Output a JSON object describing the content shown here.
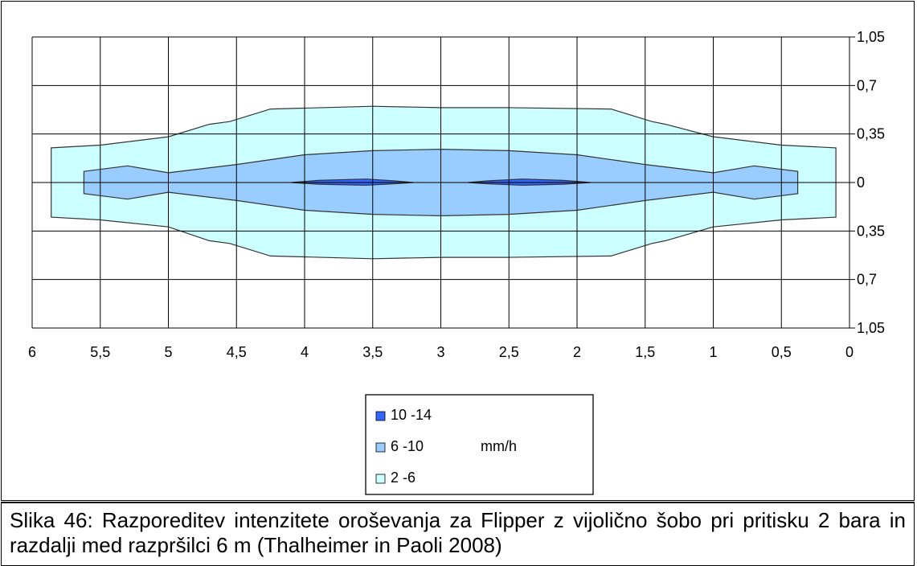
{
  "caption": "Slika 46: Razporeditev intenzitete oroševanja za Flipper z vijolično šobo pri pritisku 2 bara in razdalji med razpršilci 6 m (Thalheimer in Paoli 2008)",
  "chart_data": {
    "type": "contour",
    "x_ticks": [
      "6",
      "5,5",
      "5",
      "4,5",
      "4",
      "3,5",
      "3",
      "2,5",
      "2",
      "1,5",
      "1",
      "0,5",
      "0"
    ],
    "x_range": [
      6,
      0
    ],
    "y_ticks": [
      "1,05",
      "0,7",
      "0,35",
      "0",
      "0,35",
      "0,7",
      "1,05"
    ],
    "y_range": [
      -1.05,
      1.05
    ],
    "grid": true,
    "unit": "mm/h",
    "legend_position": "bottom-center",
    "series": [
      {
        "name": "2 -6",
        "color": "#ccffff",
        "upper": [
          [
            5.86,
            0.25
          ],
          [
            5.5,
            0.27
          ],
          [
            5.0,
            0.33
          ],
          [
            4.7,
            0.42
          ],
          [
            4.55,
            0.44
          ],
          [
            4.25,
            0.53
          ],
          [
            3.5,
            0.55
          ],
          [
            3.0,
            0.54
          ],
          [
            2.5,
            0.54
          ],
          [
            1.75,
            0.53
          ],
          [
            1.45,
            0.44
          ],
          [
            1.35,
            0.42
          ],
          [
            1.0,
            0.33
          ],
          [
            0.5,
            0.27
          ],
          [
            0.1,
            0.25
          ]
        ],
        "lower": [
          [
            5.86,
            -0.25
          ],
          [
            5.5,
            -0.27
          ],
          [
            5.0,
            -0.32
          ],
          [
            4.7,
            -0.42
          ],
          [
            4.55,
            -0.44
          ],
          [
            4.25,
            -0.53
          ],
          [
            3.5,
            -0.55
          ],
          [
            3.0,
            -0.54
          ],
          [
            2.5,
            -0.54
          ],
          [
            1.75,
            -0.53
          ],
          [
            1.45,
            -0.44
          ],
          [
            1.35,
            -0.42
          ],
          [
            1.0,
            -0.32
          ],
          [
            0.5,
            -0.27
          ],
          [
            0.1,
            -0.25
          ]
        ]
      },
      {
        "name": "6 -10",
        "color": "#99ccff",
        "upper": [
          [
            5.62,
            0.08
          ],
          [
            5.3,
            0.12
          ],
          [
            5.0,
            0.07
          ],
          [
            4.5,
            0.13
          ],
          [
            4.0,
            0.2
          ],
          [
            3.5,
            0.23
          ],
          [
            3.0,
            0.24
          ],
          [
            2.5,
            0.23
          ],
          [
            2.0,
            0.2
          ],
          [
            1.5,
            0.13
          ],
          [
            1.0,
            0.07
          ],
          [
            0.7,
            0.12
          ],
          [
            0.38,
            0.08
          ]
        ],
        "lower": [
          [
            5.62,
            -0.08
          ],
          [
            5.3,
            -0.12
          ],
          [
            5.0,
            -0.07
          ],
          [
            4.5,
            -0.13
          ],
          [
            4.0,
            -0.2
          ],
          [
            3.5,
            -0.23
          ],
          [
            3.0,
            -0.24
          ],
          [
            2.5,
            -0.23
          ],
          [
            2.0,
            -0.2
          ],
          [
            1.5,
            -0.13
          ],
          [
            1.0,
            -0.07
          ],
          [
            0.7,
            -0.12
          ],
          [
            0.38,
            -0.08
          ]
        ]
      },
      {
        "name": "10 -14",
        "color": "#3366ff",
        "upper": [
          [
            4.1,
            0.0
          ],
          [
            3.9,
            0.015
          ],
          [
            3.55,
            0.025
          ],
          [
            3.35,
            0.012
          ],
          [
            3.2,
            0.0
          ]
        ],
        "lower": [
          [
            4.1,
            0.0
          ],
          [
            3.9,
            -0.012
          ],
          [
            3.55,
            -0.02
          ],
          [
            3.35,
            -0.01
          ],
          [
            3.2,
            0.0
          ]
        ]
      },
      {
        "name": "10 -14",
        "color": "#3366ff",
        "upper": [
          [
            2.8,
            0.0
          ],
          [
            2.65,
            0.012
          ],
          [
            2.4,
            0.025
          ],
          [
            2.1,
            0.015
          ],
          [
            1.9,
            0.0
          ]
        ],
        "lower": [
          [
            2.8,
            0.0
          ],
          [
            2.65,
            -0.01
          ],
          [
            2.4,
            -0.02
          ],
          [
            2.1,
            -0.012
          ],
          [
            1.9,
            0.0
          ]
        ]
      }
    ],
    "legend": [
      {
        "label": "10 -14",
        "color": "#3366ff"
      },
      {
        "label": "6 -10",
        "color": "#99ccff"
      },
      {
        "label": "2 -6",
        "color": "#ccffff"
      }
    ]
  }
}
